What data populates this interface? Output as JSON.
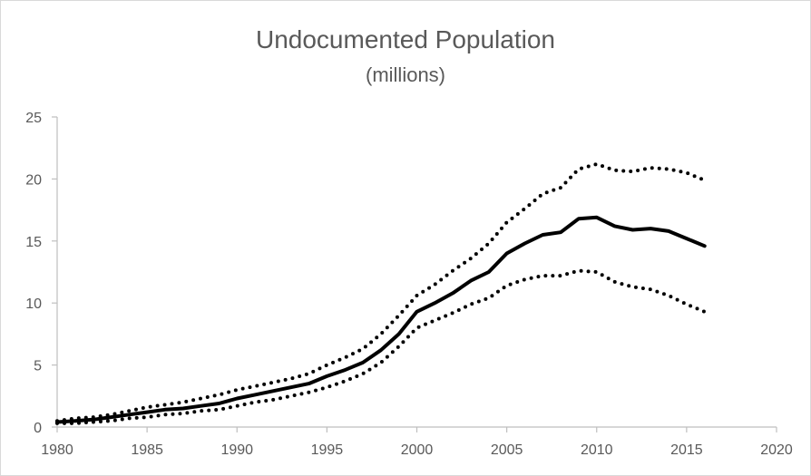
{
  "chart_data": {
    "type": "line",
    "title": "Undocumented Population",
    "subtitle": "(millions)",
    "xlabel": "",
    "ylabel": "",
    "xlim": [
      1980,
      2020
    ],
    "ylim": [
      0,
      25
    ],
    "x_ticks": [
      1980,
      1985,
      1990,
      1995,
      2000,
      2005,
      2010,
      2015,
      2020
    ],
    "y_ticks": [
      0,
      5,
      10,
      15,
      20,
      25
    ],
    "grid": false,
    "legend": "none",
    "x": [
      1980,
      1981,
      1982,
      1983,
      1984,
      1985,
      1986,
      1987,
      1988,
      1989,
      1990,
      1991,
      1992,
      1993,
      1994,
      1995,
      1996,
      1997,
      1998,
      1999,
      2000,
      2001,
      2002,
      2003,
      2004,
      2005,
      2006,
      2007,
      2008,
      2009,
      2010,
      2011,
      2012,
      2013,
      2014,
      2015,
      2016
    ],
    "series": [
      {
        "style": "solid",
        "color": "#000000",
        "values": [
          0.4,
          0.5,
          0.6,
          0.8,
          1.0,
          1.2,
          1.4,
          1.5,
          1.7,
          1.9,
          2.3,
          2.6,
          2.9,
          3.2,
          3.5,
          4.1,
          4.6,
          5.2,
          6.2,
          7.5,
          9.3,
          10.0,
          10.8,
          11.8,
          12.5,
          14.0,
          14.8,
          15.5,
          15.7,
          16.8,
          16.9,
          16.2,
          15.9,
          16.0,
          15.8,
          15.2,
          14.6
        ]
      },
      {
        "style": "dotted",
        "color": "#000000",
        "values": [
          0.5,
          0.7,
          0.8,
          1.0,
          1.3,
          1.6,
          1.8,
          2.0,
          2.3,
          2.6,
          3.0,
          3.3,
          3.6,
          3.9,
          4.3,
          5.0,
          5.6,
          6.3,
          7.5,
          9.0,
          10.6,
          11.5,
          12.6,
          13.6,
          14.8,
          16.5,
          17.6,
          18.8,
          19.3,
          20.8,
          21.2,
          20.7,
          20.6,
          20.9,
          20.8,
          20.5,
          19.9
        ]
      },
      {
        "style": "dotted",
        "color": "#000000",
        "values": [
          0.3,
          0.3,
          0.4,
          0.5,
          0.7,
          0.8,
          1.0,
          1.1,
          1.3,
          1.4,
          1.7,
          2.0,
          2.2,
          2.5,
          2.8,
          3.2,
          3.7,
          4.3,
          5.2,
          6.5,
          8.0,
          8.6,
          9.2,
          9.9,
          10.4,
          11.4,
          11.9,
          12.2,
          12.2,
          12.6,
          12.5,
          11.7,
          11.3,
          11.1,
          10.6,
          9.9,
          9.3
        ]
      }
    ]
  }
}
